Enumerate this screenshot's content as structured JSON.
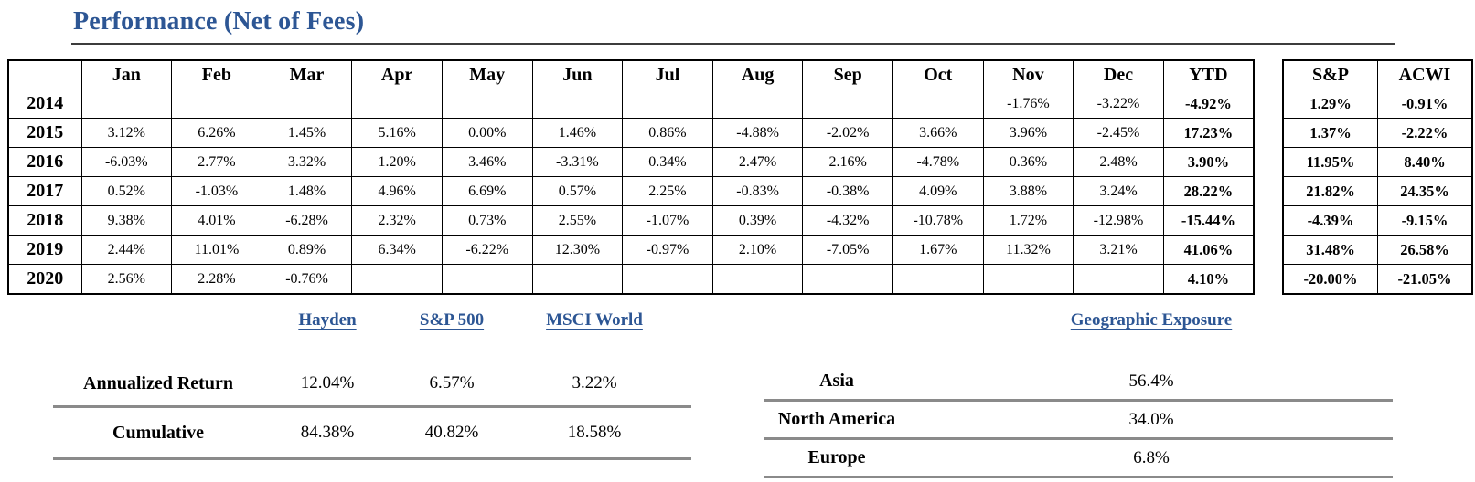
{
  "title": "Performance (Net of Fees)",
  "colors": {
    "accent_blue": "#2d5694",
    "divider_gray": "#8a8a8a",
    "table_border": "#000000"
  },
  "performance_table": {
    "columns": [
      "Jan",
      "Feb",
      "Mar",
      "Apr",
      "May",
      "Jun",
      "Jul",
      "Aug",
      "Sep",
      "Oct",
      "Nov",
      "Dec",
      "YTD"
    ],
    "rows": [
      {
        "year": "2014",
        "values": [
          "",
          "",
          "",
          "",
          "",
          "",
          "",
          "",
          "",
          "",
          "-1.76%",
          "-3.22%"
        ],
        "ytd": "-4.92%"
      },
      {
        "year": "2015",
        "values": [
          "3.12%",
          "6.26%",
          "1.45%",
          "5.16%",
          "0.00%",
          "1.46%",
          "0.86%",
          "-4.88%",
          "-2.02%",
          "3.66%",
          "3.96%",
          "-2.45%"
        ],
        "ytd": "17.23%"
      },
      {
        "year": "2016",
        "values": [
          "-6.03%",
          "2.77%",
          "3.32%",
          "1.20%",
          "3.46%",
          "-3.31%",
          "0.34%",
          "2.47%",
          "2.16%",
          "-4.78%",
          "0.36%",
          "2.48%"
        ],
        "ytd": "3.90%"
      },
      {
        "year": "2017",
        "values": [
          "0.52%",
          "-1.03%",
          "1.48%",
          "4.96%",
          "6.69%",
          "0.57%",
          "2.25%",
          "-0.83%",
          "-0.38%",
          "4.09%",
          "3.88%",
          "3.24%"
        ],
        "ytd": "28.22%"
      },
      {
        "year": "2018",
        "values": [
          "9.38%",
          "4.01%",
          "-6.28%",
          "2.32%",
          "0.73%",
          "2.55%",
          "-1.07%",
          "0.39%",
          "-4.32%",
          "-10.78%",
          "1.72%",
          "-12.98%"
        ],
        "ytd": "-15.44%"
      },
      {
        "year": "2019",
        "values": [
          "2.44%",
          "11.01%",
          "0.89%",
          "6.34%",
          "-6.22%",
          "12.30%",
          "-0.97%",
          "2.10%",
          "-7.05%",
          "1.67%",
          "11.32%",
          "3.21%"
        ],
        "ytd": "41.06%"
      },
      {
        "year": "2020",
        "values": [
          "2.56%",
          "2.28%",
          "-0.76%",
          "",
          "",
          "",
          "",
          "",
          "",
          "",
          "",
          ""
        ],
        "ytd": "4.10%"
      }
    ]
  },
  "benchmark_table": {
    "columns": [
      "S&P",
      "ACWI"
    ],
    "rows": [
      [
        "1.29%",
        "-0.91%"
      ],
      [
        "1.37%",
        "-2.22%"
      ],
      [
        "11.95%",
        "8.40%"
      ],
      [
        "21.82%",
        "24.35%"
      ],
      [
        "-4.39%",
        "-9.15%"
      ],
      [
        "31.48%",
        "26.58%"
      ],
      [
        "-20.00%",
        "-21.05%"
      ]
    ]
  },
  "returns_summary": {
    "headers": [
      "Hayden",
      "S&P 500",
      "MSCI World"
    ],
    "rows": [
      {
        "label": "Annualized Return",
        "values": [
          "12.04%",
          "6.57%",
          "3.22%"
        ]
      },
      {
        "label": "Cumulative",
        "values": [
          "84.38%",
          "40.82%",
          "18.58%"
        ]
      }
    ]
  },
  "geographic_exposure": {
    "header": "Geographic Exposure",
    "rows": [
      {
        "label": "Asia",
        "value": "56.4%"
      },
      {
        "label": "North America",
        "value": "34.0%"
      },
      {
        "label": "Europe",
        "value": "6.8%"
      }
    ]
  }
}
